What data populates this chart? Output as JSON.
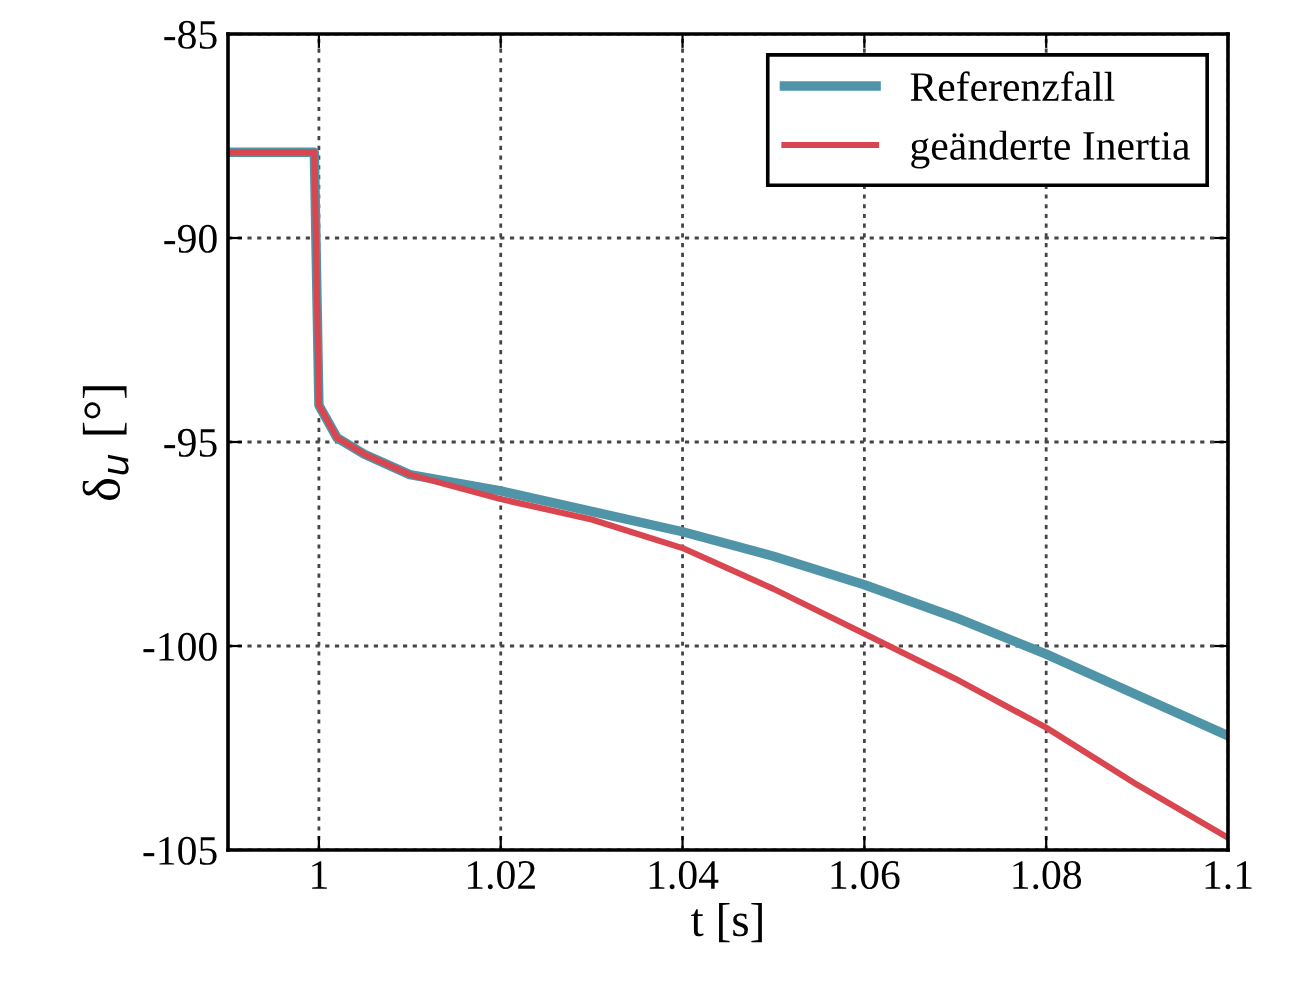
{
  "chart_data": {
    "type": "line",
    "xlabel": "t [s]",
    "ylabel": "δ$_{u}$ [°]",
    "xlim": [
      0.99,
      1.1
    ],
    "xticks": [
      1,
      1.02,
      1.04,
      1.06,
      1.08,
      1.1
    ],
    "ylim": [
      -105,
      -85
    ],
    "yticks": [
      -105,
      -100,
      -95,
      -90,
      -85
    ],
    "grid": true,
    "legend": "top right",
    "line_style": "solid",
    "marker": "none",
    "series": [
      {
        "name": "Referenzfall",
        "color": "#4f95a7",
        "x": [
          0.99,
          0.9995,
          1.0,
          1.002,
          1.005,
          1.01,
          1.02,
          1.03,
          1.04,
          1.05,
          1.06,
          1.07,
          1.08,
          1.09,
          1.1
        ],
        "values": [
          -87.9,
          -87.9,
          -94.1,
          -94.9,
          -95.3,
          -95.8,
          -96.2,
          -96.7,
          -97.2,
          -97.8,
          -98.5,
          -99.3,
          -100.2,
          -101.2,
          -102.2
        ]
      },
      {
        "name": "geänderte Inertia",
        "color": "#d9464f",
        "x": [
          0.99,
          0.9995,
          1.0,
          1.002,
          1.005,
          1.01,
          1.02,
          1.03,
          1.04,
          1.05,
          1.06,
          1.07,
          1.08,
          1.09,
          1.1
        ],
        "values": [
          -87.9,
          -87.9,
          -94.1,
          -94.9,
          -95.3,
          -95.8,
          -96.4,
          -96.9,
          -97.6,
          -98.6,
          -99.7,
          -100.8,
          -102.0,
          -103.4,
          -104.7
        ]
      }
    ]
  }
}
